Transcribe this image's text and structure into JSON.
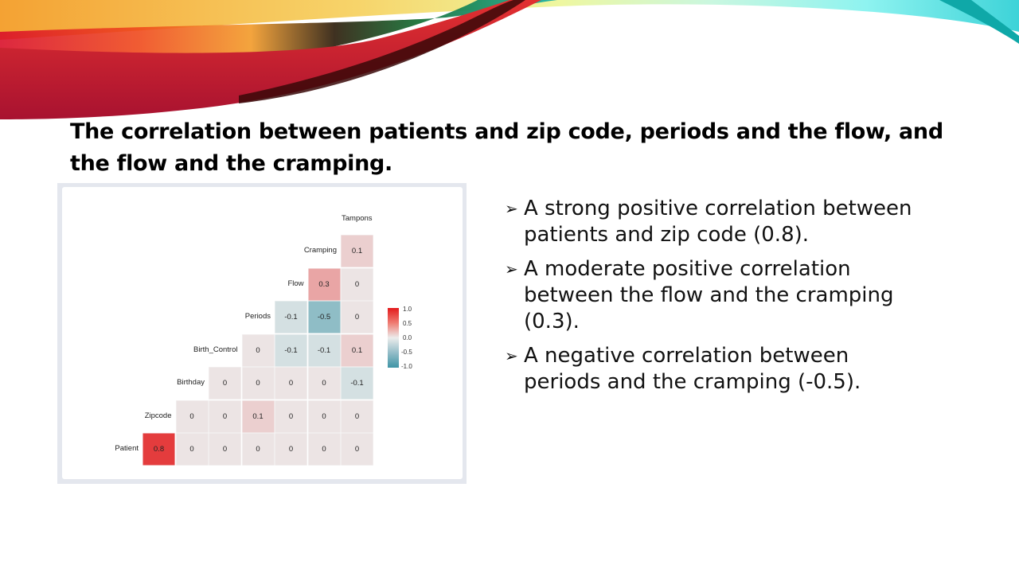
{
  "slide": {
    "title": "The correlation between patients and zip code, periods and the flow, and the flow and the cramping.",
    "bullets": [
      {
        "icon": "arrow-bullet-icon",
        "glyph": "➢",
        "text": "A strong positive correlation between patients and zip code (0.8)."
      },
      {
        "icon": "arrow-bullet-icon",
        "glyph": "➢",
        "text": "A moderate positive correlation between the flow and the cramping (0.3)."
      },
      {
        "icon": "arrow-bullet-icon",
        "glyph": "➢",
        "text": "A negative correlation between periods and the cramping (-0.5)."
      }
    ]
  },
  "chart_data": {
    "type": "heatmap",
    "title": "",
    "subtitle": "correlation matrix (lower triangle)",
    "x_labels": [
      "Zipcode",
      "Birthday",
      "Birth_Control",
      "Periods",
      "Flow",
      "Cramping",
      "Tampons"
    ],
    "y_labels": [
      "Patient",
      "Zipcode",
      "Birthday",
      "Birth_Control",
      "Periods",
      "Flow",
      "Cramping"
    ],
    "values": [
      [
        0.8,
        0,
        0,
        0,
        0,
        0,
        0
      ],
      [
        null,
        0,
        0,
        0.1,
        0,
        0,
        0
      ],
      [
        null,
        null,
        0,
        0,
        0,
        0,
        -0.1
      ],
      [
        null,
        null,
        null,
        0,
        -0.1,
        -0.1,
        0.1
      ],
      [
        null,
        null,
        null,
        null,
        -0.1,
        -0.5,
        0
      ],
      [
        null,
        null,
        null,
        null,
        null,
        0.3,
        0
      ],
      [
        null,
        null,
        null,
        null,
        null,
        null,
        0.1
      ]
    ],
    "legend": {
      "ticks": [
        "1.0",
        "0.5",
        "0.0",
        "-0.5",
        "-1.0"
      ],
      "range": [
        -1.0,
        1.0
      ],
      "position": "right",
      "colors": {
        "high": "#e31a1c",
        "mid": "#ececec",
        "low": "#3f95a6"
      }
    },
    "grid": false
  }
}
